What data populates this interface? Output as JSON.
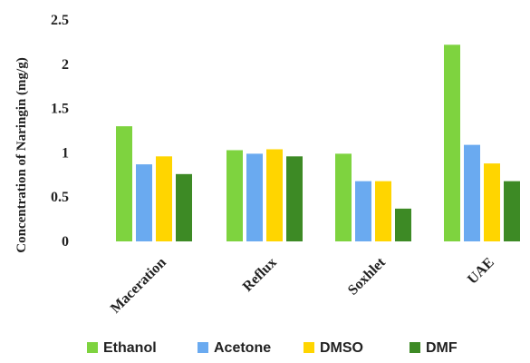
{
  "chart_data": {
    "type": "bar",
    "title": "",
    "xlabel": "",
    "ylabel": "Concentration of Naringin (mg/g)",
    "ylim": [
      0,
      2.5
    ],
    "yticks": [
      "0",
      "0.5",
      "1",
      "1.5",
      "2",
      "2.5"
    ],
    "ytick_values": [
      0,
      0.5,
      1,
      1.5,
      2,
      2.5
    ],
    "grid": false,
    "legend_position": "bottom",
    "categories": [
      "Maceration",
      "Reflux",
      "Soxhlet",
      "UAE"
    ],
    "series": [
      {
        "name": "Ethanol",
        "color": "#7ed33f",
        "values": [
          1.3,
          1.03,
          0.99,
          2.22
        ]
      },
      {
        "name": "Acetone",
        "color": "#6aaaf0",
        "values": [
          0.87,
          0.99,
          0.68,
          1.09
        ]
      },
      {
        "name": "DMSO",
        "color": "#ffd500",
        "values": [
          0.96,
          1.04,
          0.68,
          0.88
        ]
      },
      {
        "name": "DMF",
        "color": "#3d8a25",
        "values": [
          0.76,
          0.96,
          0.37,
          0.68
        ]
      }
    ]
  }
}
